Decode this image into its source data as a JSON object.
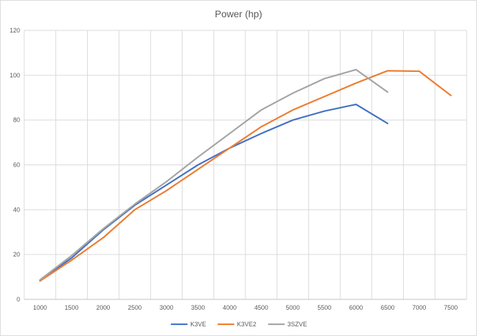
{
  "chart_data": {
    "type": "line",
    "title": "Power (hp)",
    "xlabel": "",
    "ylabel": "",
    "x_categories": [
      "1000",
      "1500",
      "2000",
      "2500",
      "3000",
      "3500",
      "4000",
      "4500",
      "5000",
      "5500",
      "6000",
      "6500",
      "7000",
      "7500"
    ],
    "ylim": [
      0,
      120
    ],
    "y_ticks": [
      0,
      20,
      40,
      60,
      80,
      100,
      120
    ],
    "grid": true,
    "legend_position": "bottom",
    "series": [
      {
        "name": "K3VE",
        "color": "#4472c4",
        "values": [
          8.5,
          18.5,
          31,
          42,
          51,
          60,
          67.5,
          74,
          80,
          84,
          87,
          78.5,
          null,
          null
        ]
      },
      {
        "name": "K3VE2",
        "color": "#ed7d31",
        "values": [
          8.2,
          17.5,
          27.5,
          40,
          48.5,
          58,
          67.5,
          77,
          84.5,
          90.5,
          96.5,
          102,
          101.8,
          91
        ]
      },
      {
        "name": "3SZVE",
        "color": "#a5a5a5",
        "values": [
          8.7,
          19.5,
          31.5,
          42.5,
          52.5,
          63.5,
          74,
          84.5,
          92,
          98.5,
          102.5,
          92.5,
          null,
          null
        ]
      }
    ]
  }
}
